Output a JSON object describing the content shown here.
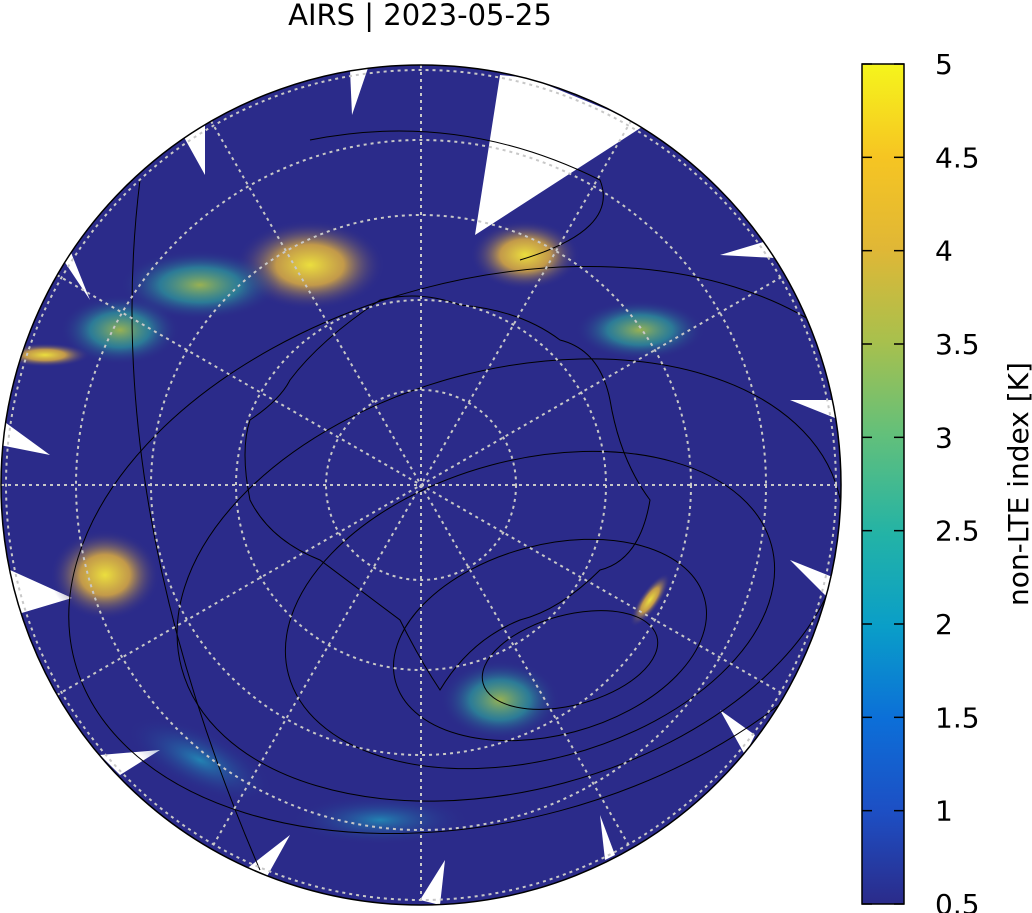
{
  "chart_data": {
    "type": "heatmap",
    "projection": "south polar stereographic",
    "title": "AIRS | 2023-05-25",
    "colorbar": {
      "label": "non-LTE index [K]",
      "range": [
        0.5,
        5
      ],
      "ticks": [
        "0.5",
        "1",
        "1.5",
        "2",
        "2.5",
        "3",
        "3.5",
        "4",
        "4.5",
        "5"
      ],
      "colors": [
        "#2b2b8a",
        "#1d4fc4",
        "#0c6fd8",
        "#0a9ec8",
        "#23b3a6",
        "#63c07a",
        "#a8c04d",
        "#e0b736",
        "#f6c522",
        "#f5f51c"
      ]
    },
    "background_value": 0.6,
    "gridlines": {
      "latitude_circles": 6,
      "meridians": 12,
      "style": "dotted"
    },
    "features": {
      "coastlines": true,
      "pressure_contours": true
    },
    "hotspots": [
      {
        "region": "upper-left swath",
        "value": 4.2
      },
      {
        "region": "far left edge",
        "value": 4.9
      },
      {
        "region": "left",
        "value": 4.6
      },
      {
        "region": "upper-right swath",
        "value": 4.1
      },
      {
        "region": "right",
        "value": 4.3
      },
      {
        "region": "lower center",
        "value": 3.0
      },
      {
        "region": "lower-left arc",
        "value": 2.0
      }
    ]
  }
}
